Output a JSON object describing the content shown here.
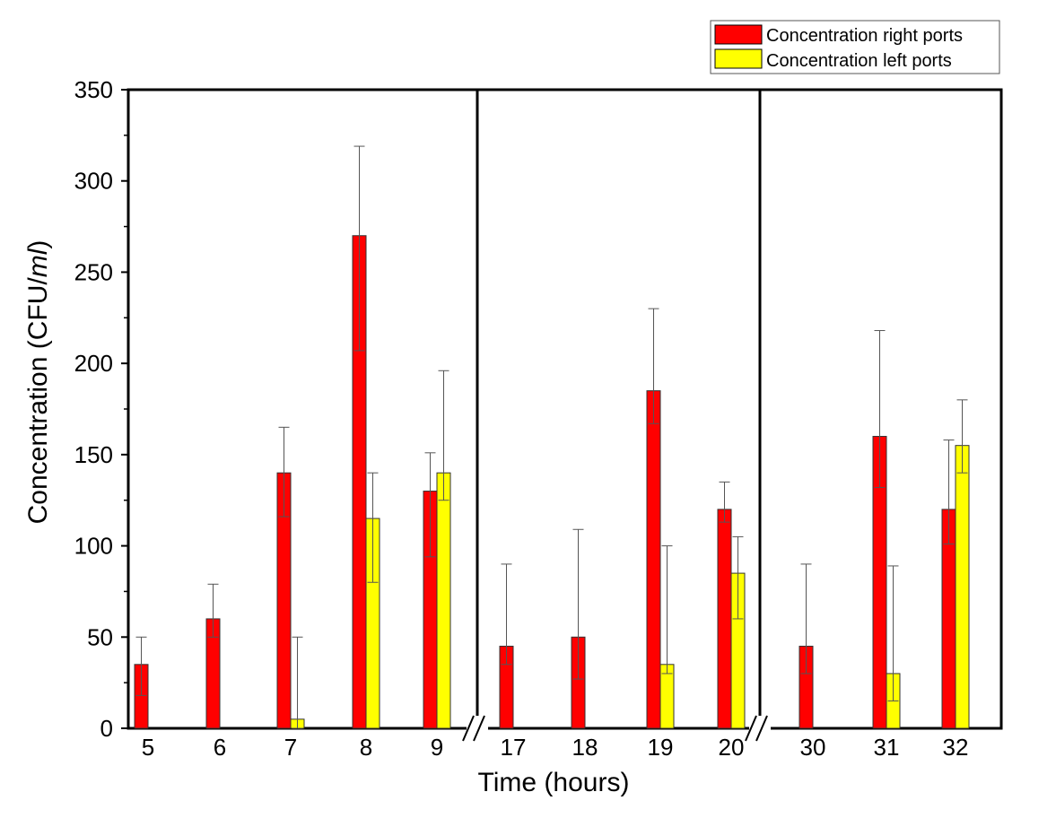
{
  "chart_data": {
    "type": "bar",
    "title": "",
    "xlabel": "Time (hours)",
    "ylabel_main": "Concentration (CFU/",
    "ylabel_unit": "ml",
    "ylabel_close": ")",
    "ylim": [
      0,
      350
    ],
    "yticks": [
      "0",
      "50",
      "100",
      "150",
      "200",
      "250",
      "300",
      "350"
    ],
    "ytick_values": [
      0,
      50,
      100,
      150,
      200,
      250,
      300,
      350
    ],
    "legend_position": "top-right, above plot",
    "axis_break": true,
    "categories": [
      "5",
      "6",
      "7",
      "8",
      "9",
      "17",
      "18",
      "19",
      "20",
      "30",
      "31",
      "32"
    ],
    "groups": [
      [
        0,
        4
      ],
      [
        5,
        8
      ],
      [
        9,
        11
      ]
    ],
    "series": [
      {
        "name": "Concentration right ports",
        "color": "#ff0000",
        "values": [
          35,
          60,
          140,
          270,
          130,
          45,
          50,
          185,
          120,
          45,
          160,
          120
        ],
        "err_upper": [
          50,
          79,
          165,
          319,
          151,
          90,
          109,
          230,
          135,
          90,
          218,
          158
        ],
        "err_lower": [
          18,
          50,
          116,
          207,
          94,
          35,
          27,
          167,
          113,
          30,
          132,
          101
        ]
      },
      {
        "name": "Concentration left ports",
        "color": "#ffff00",
        "values": [
          null,
          null,
          5,
          115,
          140,
          null,
          null,
          35,
          85,
          null,
          30,
          155
        ],
        "err_upper": [
          null,
          null,
          50,
          140,
          196,
          null,
          null,
          100,
          105,
          null,
          89,
          180
        ],
        "err_lower": [
          null,
          null,
          0,
          80,
          125,
          null,
          null,
          30,
          60,
          null,
          15,
          140
        ]
      }
    ]
  }
}
